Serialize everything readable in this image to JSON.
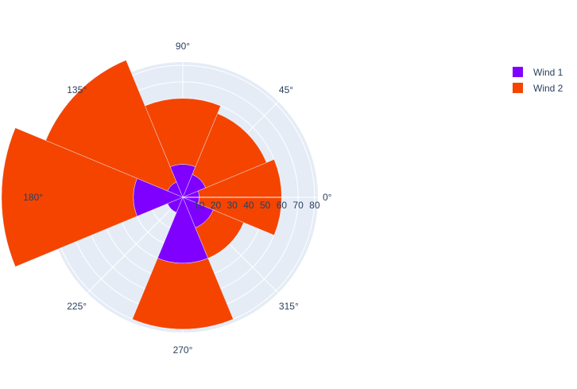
{
  "chart_data": {
    "type": "barpolar",
    "series": [
      {
        "name": "Wind 1",
        "color": "#7f00ff",
        "theta": [
          0,
          45,
          90,
          135,
          180,
          225,
          270,
          315
        ],
        "r": [
          10,
          15,
          20,
          10,
          30,
          10,
          40,
          20
        ]
      },
      {
        "name": "Wind 2",
        "color": "#f54400",
        "theta": [
          0,
          45,
          90,
          135,
          180,
          225,
          270,
          315
        ],
        "r": [
          50,
          40,
          40,
          80,
          80,
          0,
          40,
          20
        ]
      }
    ],
    "angular_ticks": [
      "0°",
      "45°",
      "90°",
      "135°",
      "180°",
      "225°",
      "270°",
      "315°"
    ],
    "radial_ticks": [
      "10",
      "20",
      "30",
      "40",
      "50",
      "60",
      "70",
      "80"
    ],
    "radial_range": [
      0,
      82
    ],
    "barmode": "stack",
    "polar_background": "#e5ecf6",
    "grid_color": "#ffffff",
    "legend_position": "top-right"
  }
}
